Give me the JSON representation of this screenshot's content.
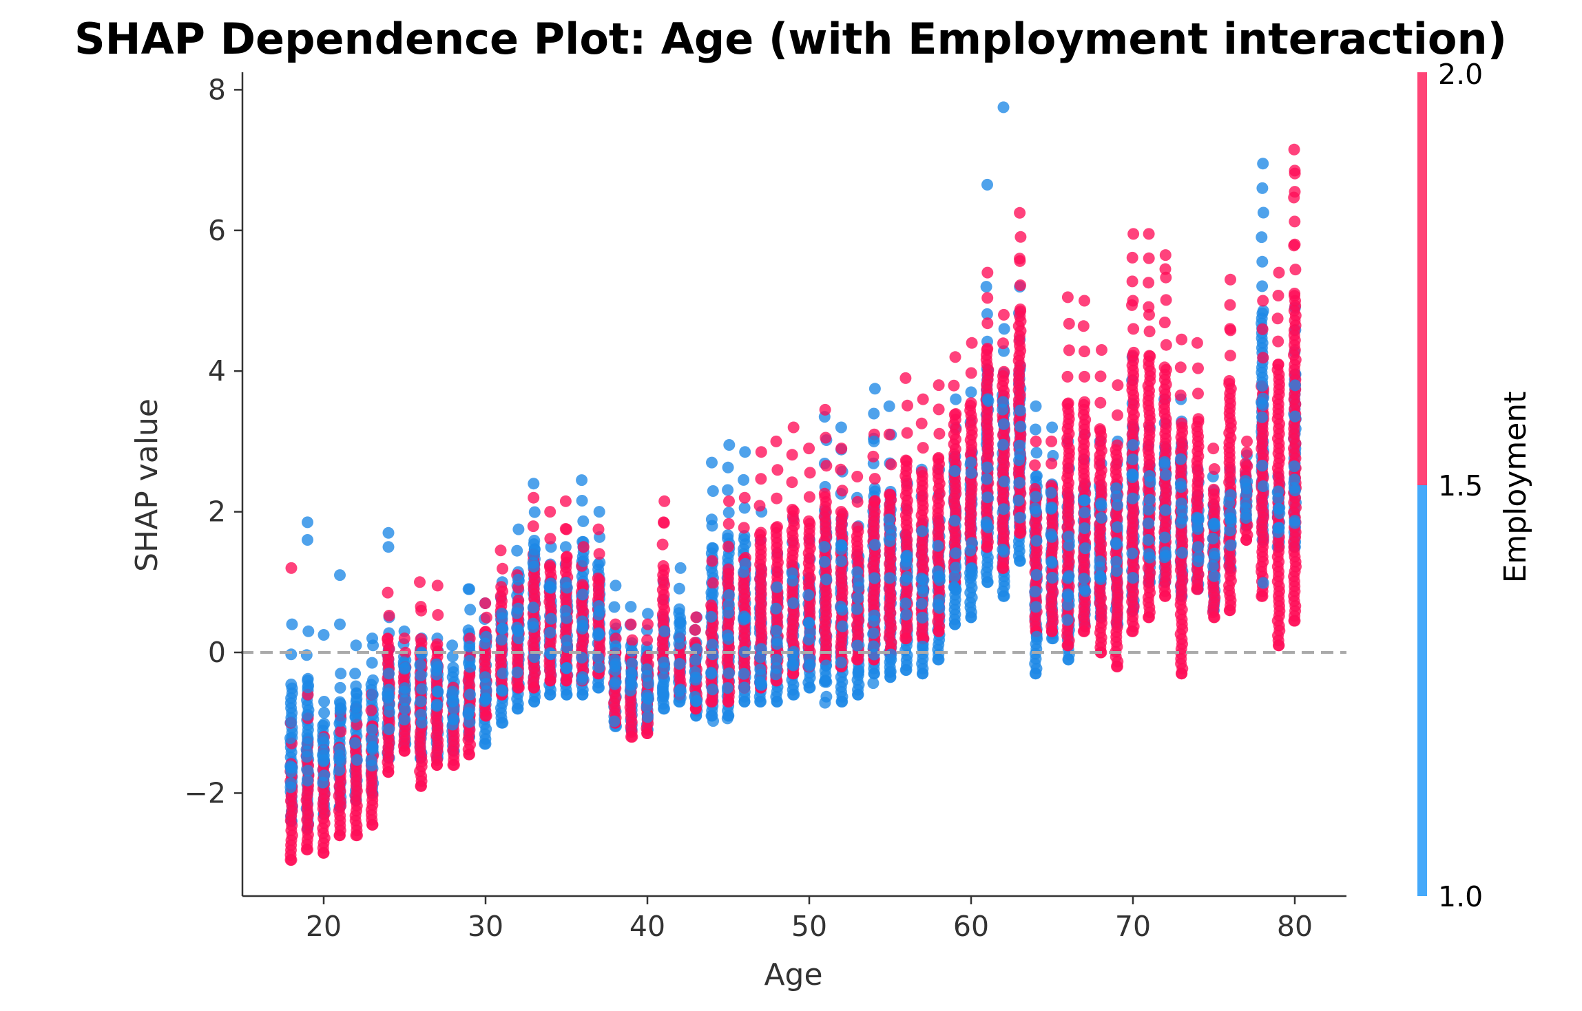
{
  "chart_data": {
    "type": "scatter",
    "title": "SHAP Dependence Plot: Age (with Employment interaction)",
    "xlabel": "Age",
    "ylabel": "SHAP value",
    "xlim": [
      15,
      83
    ],
    "ylim": [
      -3.5,
      8.25
    ],
    "xticks": [
      20,
      30,
      40,
      50,
      60,
      70,
      80
    ],
    "yticks": [
      -2,
      0,
      2,
      4,
      6,
      8
    ],
    "xtick_labels": [
      "20",
      "30",
      "40",
      "50",
      "60",
      "70",
      "80"
    ],
    "ytick_labels": [
      "−2",
      "0",
      "2",
      "4",
      "6",
      "8"
    ],
    "reference_line": {
      "y": 0,
      "style": "dashed",
      "color": "#aaaaaa"
    },
    "grid": false,
    "colorbar": {
      "label": "Employment",
      "range": [
        1.0,
        2.0
      ],
      "ticks": [
        1.0,
        1.5,
        2.0
      ],
      "tick_labels": [
        "1.0",
        "1.5",
        "2.0"
      ],
      "low_color": "#1e88e5",
      "high_color": "#ff0d57"
    },
    "color_key": {
      "1": "#1e88e5",
      "2": "#ff0d57"
    },
    "columns": [
      {
        "age": 18,
        "b": [
          -2.4,
          0.4,
          -1.5
        ],
        "r": [
          -2.95,
          -1.0,
          -2.3
        ],
        "out": [
          [
            1.2,
            2
          ]
        ]
      },
      {
        "age": 19,
        "b": [
          -2.5,
          0.3,
          -1.2
        ],
        "r": [
          -2.8,
          -0.6,
          -2.1
        ],
        "out": [
          [
            1.85,
            1
          ],
          [
            1.6,
            1
          ]
        ]
      },
      {
        "age": 20,
        "b": [
          -2.3,
          -0.7,
          -1.4
        ],
        "r": [
          -2.85,
          -1.2,
          -2.0
        ],
        "out": [
          [
            0.25,
            1
          ]
        ]
      },
      {
        "age": 21,
        "b": [
          -2.2,
          -0.3,
          -1.2
        ],
        "r": [
          -2.6,
          -0.9,
          -1.9
        ],
        "out": [
          [
            1.1,
            1
          ],
          [
            0.4,
            1
          ]
        ]
      },
      {
        "age": 22,
        "b": [
          -2.1,
          -0.3,
          -1.1
        ],
        "r": [
          -2.6,
          -0.8,
          -1.8
        ],
        "out": [
          [
            0.1,
            1
          ]
        ]
      },
      {
        "age": 23,
        "b": [
          -2.0,
          0.1,
          -1.0
        ],
        "r": [
          -2.45,
          -0.6,
          -1.6
        ],
        "out": [
          [
            0.2,
            1
          ]
        ]
      },
      {
        "age": 24,
        "b": [
          -1.5,
          0.5,
          -0.5
        ],
        "r": [
          -1.7,
          0.85,
          -0.6
        ],
        "out": [
          [
            1.7,
            1
          ],
          [
            1.5,
            1
          ]
        ]
      },
      {
        "age": 25,
        "b": [
          -1.3,
          0.3,
          -0.5
        ],
        "r": [
          -1.4,
          0.2,
          -0.7
        ],
        "out": []
      },
      {
        "age": 26,
        "b": [
          -1.5,
          0.2,
          -0.5
        ],
        "r": [
          -1.9,
          1.0,
          -0.8
        ],
        "out": [
          [
            0.65,
            2
          ]
        ]
      },
      {
        "age": 27,
        "b": [
          -1.5,
          0.2,
          -0.6
        ],
        "r": [
          -1.6,
          0.95,
          -0.9
        ],
        "out": []
      },
      {
        "age": 28,
        "b": [
          -1.4,
          0.1,
          -0.6
        ],
        "r": [
          -1.6,
          -0.5,
          -1.0
        ],
        "out": []
      },
      {
        "age": 29,
        "b": [
          -1.2,
          0.9,
          -0.4
        ],
        "r": [
          -1.45,
          0.2,
          -0.9
        ],
        "out": [
          [
            0.9,
            1
          ]
        ]
      },
      {
        "age": 30,
        "b": [
          -1.3,
          0.7,
          -0.3
        ],
        "r": [
          -0.9,
          0.7,
          -0.2
        ],
        "out": []
      },
      {
        "age": 31,
        "b": [
          -1.0,
          1.0,
          0.0
        ],
        "r": [
          -0.6,
          1.45,
          0.3
        ],
        "out": []
      },
      {
        "age": 32,
        "b": [
          -0.8,
          1.75,
          0.4
        ],
        "r": [
          -0.5,
          1.1,
          0.3
        ],
        "out": []
      },
      {
        "age": 33,
        "b": [
          -0.7,
          2.4,
          0.6
        ],
        "r": [
          -0.5,
          2.2,
          0.4
        ],
        "out": []
      },
      {
        "age": 34,
        "b": [
          -0.6,
          1.5,
          0.4
        ],
        "r": [
          -0.4,
          2.0,
          0.3
        ],
        "out": []
      },
      {
        "age": 35,
        "b": [
          -0.6,
          1.5,
          0.4
        ],
        "r": [
          -0.4,
          2.15,
          0.4
        ],
        "out": [
          [
            1.75,
            2
          ]
        ]
      },
      {
        "age": 36,
        "b": [
          -0.6,
          2.45,
          0.5
        ],
        "r": [
          -0.4,
          1.5,
          0.3
        ],
        "out": []
      },
      {
        "age": 37,
        "b": [
          -0.5,
          2.0,
          0.4
        ],
        "r": [
          -0.3,
          1.75,
          0.2
        ],
        "out": []
      },
      {
        "age": 38,
        "b": [
          -1.05,
          0.95,
          -0.4
        ],
        "r": [
          -1.0,
          0.4,
          -0.5
        ],
        "out": []
      },
      {
        "age": 39,
        "b": [
          -1.1,
          0.65,
          -0.5
        ],
        "r": [
          -1.2,
          0.4,
          -0.6
        ],
        "out": []
      },
      {
        "age": 40,
        "b": [
          -1.1,
          0.55,
          -0.5
        ],
        "r": [
          -1.15,
          0.4,
          -0.6
        ],
        "out": []
      },
      {
        "age": 41,
        "b": [
          -0.8,
          1.0,
          -0.1
        ],
        "r": [
          -0.3,
          2.15,
          0.1
        ],
        "out": [
          [
            1.85,
            2
          ]
        ]
      },
      {
        "age": 42,
        "b": [
          -0.7,
          1.2,
          -0.1
        ],
        "r": [
          -0.6,
          0.2,
          -0.3
        ],
        "out": []
      },
      {
        "age": 43,
        "b": [
          -0.9,
          0.5,
          -0.3
        ],
        "r": [
          -0.8,
          0.5,
          -0.3
        ],
        "out": []
      },
      {
        "age": 44,
        "b": [
          -0.9,
          2.7,
          0.0
        ],
        "r": [
          -0.7,
          1.3,
          -0.1
        ],
        "out": [
          [
            1.8,
            1
          ]
        ]
      },
      {
        "age": 45,
        "b": [
          -0.9,
          2.95,
          0.1
        ],
        "r": [
          -0.7,
          2.15,
          0.0
        ],
        "out": []
      },
      {
        "age": 46,
        "b": [
          -0.7,
          2.85,
          0.2
        ],
        "r": [
          -0.5,
          2.2,
          0.3
        ],
        "out": []
      },
      {
        "age": 47,
        "b": [
          -0.7,
          2.0,
          0.2
        ],
        "r": [
          -0.5,
          2.85,
          0.3
        ],
        "out": []
      },
      {
        "age": 48,
        "b": [
          -0.7,
          1.4,
          0.3
        ],
        "r": [
          -0.4,
          3.0,
          0.3
        ],
        "out": []
      },
      {
        "age": 49,
        "b": [
          -0.6,
          1.9,
          0.4
        ],
        "r": [
          -0.3,
          3.2,
          0.6
        ],
        "out": []
      },
      {
        "age": 50,
        "b": [
          -0.5,
          1.6,
          0.4
        ],
        "r": [
          -0.2,
          2.9,
          0.6
        ],
        "out": []
      },
      {
        "age": 51,
        "b": [
          -0.4,
          3.35,
          0.4
        ],
        "r": [
          -0.1,
          3.45,
          0.8
        ],
        "out": []
      },
      {
        "age": 52,
        "b": [
          -0.7,
          3.2,
          0.4
        ],
        "r": [
          -0.2,
          2.9,
          0.9
        ],
        "out": []
      },
      {
        "age": 53,
        "b": [
          -0.6,
          2.2,
          0.4
        ],
        "r": [
          -0.1,
          2.5,
          0.9
        ],
        "out": []
      },
      {
        "age": 54,
        "b": [
          -0.3,
          3.75,
          0.6
        ],
        "r": [
          -0.1,
          3.1,
          1.0
        ],
        "out": [
          [
            3.0,
            1
          ]
        ]
      },
      {
        "age": 55,
        "b": [
          -0.35,
          3.5,
          0.8
        ],
        "r": [
          0.0,
          3.1,
          1.2
        ],
        "out": []
      },
      {
        "age": 56,
        "b": [
          -0.25,
          2.4,
          0.8
        ],
        "r": [
          0.2,
          3.9,
          1.3
        ],
        "out": []
      },
      {
        "age": 57,
        "b": [
          -0.3,
          2.6,
          0.9
        ],
        "r": [
          0.2,
          3.6,
          1.3
        ],
        "out": []
      },
      {
        "age": 58,
        "b": [
          -0.1,
          2.6,
          1.0
        ],
        "r": [
          0.3,
          3.8,
          1.5
        ],
        "out": []
      },
      {
        "age": 59,
        "b": [
          0.4,
          3.6,
          1.8
        ],
        "r": [
          1.0,
          4.2,
          2.4
        ],
        "out": []
      },
      {
        "age": 60,
        "b": [
          0.5,
          3.7,
          1.8
        ],
        "r": [
          1.2,
          4.4,
          2.5
        ],
        "out": []
      },
      {
        "age": 61,
        "b": [
          1.0,
          5.2,
          2.6
        ],
        "r": [
          1.5,
          5.4,
          3.0
        ],
        "out": [
          [
            6.65,
            1
          ]
        ]
      },
      {
        "age": 62,
        "b": [
          0.8,
          4.6,
          2.5
        ],
        "r": [
          1.2,
          4.8,
          3.0
        ],
        "out": [
          [
            7.75,
            1
          ]
        ]
      },
      {
        "age": 63,
        "b": [
          1.3,
          5.2,
          2.7
        ],
        "r": [
          1.7,
          6.25,
          3.2
        ],
        "out": [
          [
            5.6,
            2
          ]
        ]
      },
      {
        "age": 64,
        "b": [
          -0.3,
          3.5,
          1.3
        ],
        "r": [
          0.3,
          3.0,
          1.5
        ],
        "out": []
      },
      {
        "age": 65,
        "b": [
          0.2,
          3.2,
          1.4
        ],
        "r": [
          0.3,
          3.0,
          1.6
        ],
        "out": []
      },
      {
        "age": 66,
        "b": [
          -0.1,
          3.0,
          1.3
        ],
        "r": [
          0.1,
          5.05,
          1.7
        ],
        "out": []
      },
      {
        "age": 67,
        "b": [
          0.4,
          3.1,
          1.5
        ],
        "r": [
          0.3,
          5.0,
          1.8
        ],
        "out": []
      },
      {
        "age": 68,
        "b": [
          0.5,
          3.0,
          1.6
        ],
        "r": [
          0.0,
          4.3,
          1.8
        ],
        "out": []
      },
      {
        "age": 69,
        "b": [
          0.4,
          3.0,
          1.6
        ],
        "r": [
          -0.2,
          3.8,
          1.9
        ],
        "out": []
      },
      {
        "age": 70,
        "b": [
          0.6,
          4.2,
          2.0
        ],
        "r": [
          0.3,
          5.95,
          2.2
        ],
        "out": [
          [
            5.0,
            2
          ]
        ]
      },
      {
        "age": 71,
        "b": [
          1.0,
          3.2,
          2.0
        ],
        "r": [
          0.5,
          5.95,
          2.1
        ],
        "out": [
          [
            4.8,
            2
          ]
        ]
      },
      {
        "age": 72,
        "b": [
          1.0,
          3.6,
          2.1
        ],
        "r": [
          0.8,
          5.65,
          2.1
        ],
        "out": [
          [
            5.45,
            2
          ]
        ]
      },
      {
        "age": 73,
        "b": [
          0.8,
          3.6,
          2.2
        ],
        "r": [
          -0.3,
          4.45,
          1.8
        ],
        "out": []
      },
      {
        "age": 74,
        "b": [
          0.9,
          2.6,
          1.8
        ],
        "r": [
          0.9,
          4.4,
          2.0
        ],
        "out": []
      },
      {
        "age": 75,
        "b": [
          0.6,
          2.5,
          1.6
        ],
        "r": [
          0.5,
          2.9,
          1.6
        ],
        "out": []
      },
      {
        "age": 76,
        "b": [
          1.2,
          2.6,
          1.9
        ],
        "r": [
          0.6,
          5.3,
          2.1
        ],
        "out": [
          [
            4.6,
            2
          ]
        ]
      },
      {
        "age": 77,
        "b": [
          1.8,
          2.8,
          2.2
        ],
        "r": [
          1.6,
          3.0,
          2.3
        ],
        "out": []
      },
      {
        "age": 78,
        "b": [
          1.6,
          6.95,
          2.3
        ],
        "r": [
          0.8,
          5.0,
          2.3
        ],
        "out": []
      },
      {
        "age": 79,
        "b": [
          1.5,
          2.5,
          2.0
        ],
        "r": [
          0.1,
          5.4,
          2.5
        ],
        "out": []
      },
      {
        "age": 80,
        "b": [
          1.5,
          4.9,
          2.8
        ],
        "r": [
          0.45,
          7.15,
          2.6
        ],
        "out": [
          [
            6.85,
            2
          ],
          [
            6.55,
            2
          ],
          [
            5.8,
            2
          ]
        ]
      }
    ]
  }
}
